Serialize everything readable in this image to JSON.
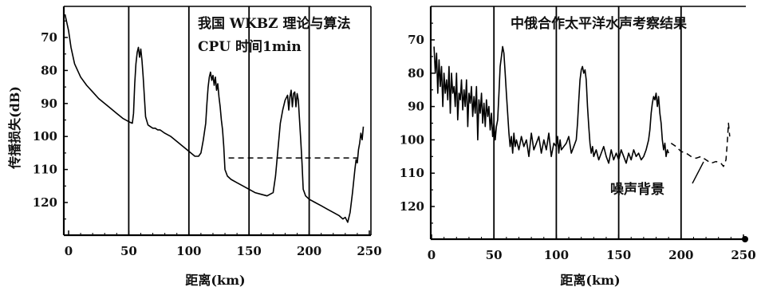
{
  "chart_data": [
    {
      "type": "line",
      "title": "",
      "annotations": [
        "我国 WKBZ 理论与算法",
        "CPU 时间1min"
      ],
      "xlabel": "距离(km)",
      "ylabel": "传播损失(dB)",
      "xlim": [
        -3,
        250
      ],
      "ylim": [
        130,
        63
      ],
      "x_ticks": [
        0,
        50,
        100,
        150,
        200,
        250
      ],
      "y_ticks": [
        70,
        80,
        90,
        100,
        110,
        120
      ],
      "vertical_lines": [
        50,
        100,
        150,
        200
      ],
      "grid": false,
      "series": [
        {
          "style": "solid",
          "x": [
            -3,
            0,
            2,
            5,
            10,
            15,
            20,
            25,
            30,
            35,
            40,
            45,
            50,
            53,
            54,
            55,
            56,
            57,
            58,
            59,
            60,
            61,
            62,
            63,
            64,
            66,
            68,
            70,
            72,
            74,
            76,
            78,
            80,
            85,
            90,
            95,
            100,
            105,
            108,
            110,
            112,
            114,
            115,
            116,
            117,
            118,
            119,
            120,
            121,
            122,
            123,
            124,
            125,
            126,
            127,
            128,
            129,
            130,
            132,
            135,
            140,
            145,
            150,
            155,
            160,
            165,
            170,
            172,
            174,
            176,
            178,
            180,
            182,
            183,
            184,
            185,
            186,
            187,
            188,
            189,
            190,
            191,
            192,
            193,
            194,
            195,
            197,
            200,
            205,
            210,
            215,
            220,
            225,
            228,
            230,
            232,
            234,
            236,
            238,
            239,
            240,
            241,
            242,
            243,
            244,
            245
          ],
          "y": [
            63,
            68,
            73,
            78,
            82,
            84.5,
            86.5,
            88.5,
            90,
            91.5,
            93,
            94.5,
            95.5,
            96,
            93,
            84,
            78,
            74.5,
            73,
            76,
            73.5,
            77,
            82,
            88,
            94,
            96.5,
            97,
            97.5,
            97.5,
            98,
            98,
            98.5,
            99,
            100,
            101.5,
            103,
            104.5,
            106,
            106,
            105,
            101,
            96,
            90,
            85,
            82,
            80.5,
            83,
            81.5,
            84.5,
            82,
            86,
            84,
            88,
            91,
            95,
            98,
            103,
            110,
            112,
            113,
            114,
            115,
            116,
            117,
            117.5,
            118,
            117,
            112,
            104,
            96,
            92,
            89,
            87.5,
            92,
            88,
            86,
            91,
            87,
            86.5,
            91,
            87,
            89,
            95,
            101,
            108,
            116,
            118,
            119,
            120,
            121,
            122,
            123,
            124,
            125,
            124.5,
            126,
            123,
            117,
            110,
            107,
            108,
            104,
            102,
            99,
            101,
            97
          ]
        },
        {
          "style": "dashed",
          "x": [
            133,
            240
          ],
          "y": [
            106.5,
            106.5
          ]
        }
      ]
    },
    {
      "type": "line",
      "title": "",
      "annotations": [
        "中俄合作太平洋水声考察结果",
        "噪声背景"
      ],
      "xlabel": "距离(km)",
      "ylabel": "",
      "xlim": [
        0,
        250
      ],
      "ylim": [
        130,
        63
      ],
      "x_ticks": [
        0,
        50,
        100,
        150,
        200,
        250
      ],
      "y_ticks": [
        70,
        80,
        90,
        100,
        110,
        120
      ],
      "vertical_lines": [
        50,
        100,
        150,
        200
      ],
      "grid": false,
      "series": [
        {
          "style": "solid",
          "x": [
            2,
            3,
            4,
            5,
            6,
            7,
            8,
            9,
            10,
            11,
            12,
            13,
            14,
            15,
            16,
            17,
            18,
            19,
            20,
            21,
            22,
            23,
            24,
            25,
            26,
            27,
            28,
            29,
            30,
            31,
            32,
            33,
            34,
            35,
            36,
            37,
            38,
            39,
            40,
            41,
            42,
            43,
            44,
            45,
            46,
            47,
            48,
            49,
            50,
            51,
            52,
            53,
            54,
            55,
            56,
            57,
            58,
            59,
            60,
            61,
            62,
            63,
            64,
            65,
            66,
            67,
            68,
            70,
            72,
            74,
            76,
            78,
            80,
            82,
            84,
            86,
            88,
            90,
            92,
            94,
            96,
            98,
            100,
            101,
            102,
            103,
            104,
            106,
            108,
            110,
            112,
            114,
            116,
            117,
            118,
            119,
            120,
            121,
            122,
            123,
            124,
            125,
            126,
            127,
            128,
            129,
            130,
            132,
            134,
            136,
            138,
            140,
            142,
            144,
            146,
            148,
            150,
            152,
            154,
            156,
            158,
            160,
            162,
            164,
            166,
            168,
            170,
            172,
            174,
            175,
            176,
            177,
            178,
            179,
            180,
            181,
            182,
            183,
            184,
            185,
            186,
            187,
            188,
            189,
            190
          ],
          "y": [
            72,
            80,
            74,
            86,
            76,
            84,
            78,
            90,
            80,
            86,
            82,
            88,
            78,
            92,
            80,
            86,
            84,
            90,
            80,
            94,
            86,
            88,
            82,
            91,
            85,
            90,
            82,
            96,
            86,
            89,
            84,
            93,
            87,
            92,
            84,
            100,
            88,
            92,
            86,
            95,
            89,
            96,
            88,
            93,
            90,
            97,
            92,
            99,
            95,
            100,
            96,
            94,
            86,
            78,
            75,
            72,
            74,
            80,
            86,
            92,
            98,
            102,
            99,
            104,
            98,
            102,
            100,
            103,
            99,
            102,
            100,
            105,
            98,
            103,
            101,
            99,
            104,
            100,
            103,
            98,
            105,
            101,
            102,
            99,
            104,
            100,
            103,
            102,
            101,
            99,
            104,
            102,
            100,
            95,
            88,
            82,
            79,
            78,
            80,
            79,
            82,
            90,
            96,
            101,
            104,
            102,
            105,
            103,
            106,
            104,
            102,
            105,
            107,
            103,
            106,
            104,
            106,
            103,
            105,
            107,
            104,
            106,
            103,
            105,
            104,
            106,
            105,
            103,
            100,
            97,
            92,
            89,
            87,
            88,
            86,
            90,
            87,
            92,
            95,
            100,
            103,
            101,
            105,
            103,
            104
          ]
        },
        {
          "style": "dashed",
          "x": [
            192,
            196,
            200,
            204,
            208,
            212,
            216,
            220,
            224,
            228,
            232,
            234,
            236,
            237,
            238,
            239
          ],
          "y": [
            101,
            102,
            103.5,
            104,
            105,
            105.5,
            105,
            106,
            107,
            106.5,
            107,
            108,
            106,
            101,
            95,
            99
          ]
        }
      ]
    }
  ]
}
